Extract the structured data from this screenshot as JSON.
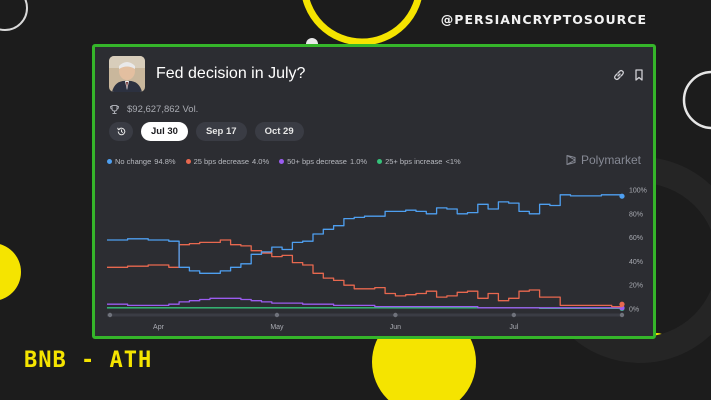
{
  "header": {
    "handle": "@PERSIANCRYPTOSOURCE"
  },
  "caption": "BNB - ATH",
  "card": {
    "title": "Fed decision in July?",
    "volume": "$92,627,862 Vol.",
    "icons": [
      "trophy-icon",
      "link-icon",
      "bookmark-icon",
      "history-icon"
    ],
    "tabs": [
      {
        "label": "Jul 30",
        "active": true
      },
      {
        "label": "Sep 17",
        "active": false
      },
      {
        "label": "Oct 29",
        "active": false
      }
    ],
    "brand": "Polymarket"
  },
  "colors": {
    "accent_green": "#35b52a",
    "accent_yellow": "#f5e400",
    "no_change": "#4e9ff0",
    "decrease_25": "#e8684f",
    "decrease_50": "#9b5cf0",
    "increase_25": "#35c27a"
  },
  "chart_data": {
    "type": "line",
    "legend": [
      {
        "name": "No change",
        "value": "94.8%",
        "color": "#4e9ff0"
      },
      {
        "name": "25 bps decrease",
        "value": "4.0%",
        "color": "#e8684f"
      },
      {
        "name": "50+ bps decrease",
        "value": "1.0%",
        "color": "#9b5cf0"
      },
      {
        "name": "25+ bps increase",
        "value": "<1%",
        "color": "#35c27a"
      }
    ],
    "x_ticks": [
      "Apr",
      "May",
      "Jun",
      "Jul"
    ],
    "y_ticks": [
      "0%",
      "20%",
      "40%",
      "60%",
      "80%",
      "100%"
    ],
    "ylim": [
      0,
      100
    ],
    "x": [
      0,
      4,
      8,
      12,
      14,
      16,
      18,
      20,
      22,
      24,
      26,
      28,
      30,
      32,
      34,
      36,
      38,
      40,
      42,
      44,
      46,
      48,
      50,
      52,
      54,
      56,
      58,
      60,
      62,
      64,
      66,
      68,
      70,
      72,
      74,
      76,
      78,
      80,
      82,
      84,
      86,
      88,
      90,
      92,
      94,
      96,
      98,
      100
    ],
    "series": [
      {
        "name": "No change",
        "values": [
          58,
          59,
          58,
          57,
          35,
          32,
          30,
          30,
          32,
          35,
          38,
          46,
          48,
          52,
          50,
          56,
          57,
          63,
          67,
          70,
          76,
          77,
          78,
          78,
          82,
          82,
          83,
          82,
          80,
          85,
          84,
          80,
          81,
          88,
          84,
          90,
          89,
          82,
          80,
          88,
          87,
          96,
          95,
          95,
          95,
          96,
          96,
          94.8
        ]
      },
      {
        "name": "25 bps decrease",
        "values": [
          35,
          36,
          37,
          35,
          54,
          55,
          56,
          56,
          58,
          54,
          53,
          49,
          47,
          44,
          45,
          39,
          37,
          30,
          26,
          24,
          20,
          17,
          17,
          18,
          13,
          11,
          12,
          13,
          15,
          10,
          11,
          14,
          15,
          9,
          13,
          7,
          9,
          15,
          16,
          10,
          10,
          3,
          3,
          3,
          3,
          3,
          2,
          4
        ]
      },
      {
        "name": "50+ bps decrease",
        "values": [
          4,
          3,
          3,
          4,
          6,
          7,
          8,
          9,
          9,
          9,
          8,
          7,
          6,
          5,
          5,
          5,
          4,
          4,
          4,
          3,
          3,
          3,
          3,
          2,
          2,
          2,
          2,
          2,
          2,
          2,
          2,
          2,
          2,
          1,
          1,
          1,
          1,
          1,
          1,
          1,
          1,
          1,
          1,
          1,
          1,
          1,
          1,
          1
        ]
      },
      {
        "name": "25+ bps increase",
        "values": [
          1,
          1,
          1,
          1,
          1,
          1,
          1,
          1,
          1,
          1,
          1,
          1,
          1,
          1,
          1,
          1,
          1,
          1,
          1,
          1,
          1,
          1,
          1,
          1,
          1,
          1,
          1,
          1,
          1,
          1,
          1,
          1,
          1,
          1,
          1,
          1,
          1,
          1,
          1,
          0.5,
          0.5,
          0.5,
          0.5,
          0.5,
          0.5,
          0.5,
          0.5,
          0.5
        ]
      }
    ],
    "grid": false,
    "legend_placement": "top-left"
  }
}
